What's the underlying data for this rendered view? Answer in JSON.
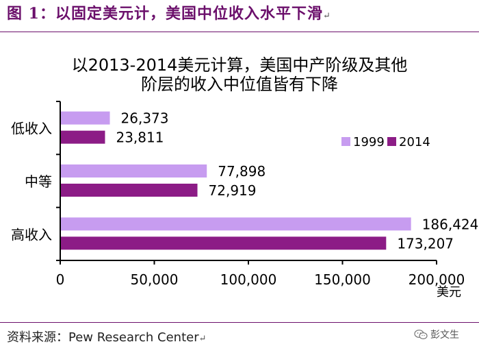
{
  "figure": {
    "label": "图 1：以固定美元计，美国中位收入水平下滑",
    "mark": "↵"
  },
  "source": {
    "prefix": "资料来源：",
    "name": "Pew Research Center",
    "mark": "↵"
  },
  "watermark": {
    "text": "彭文生",
    "icon": "wechat-icon"
  },
  "colors": {
    "title_accent": "#6b0f6b",
    "series_1999": "#c79cf0",
    "series_2014": "#8c1c86"
  },
  "chart_data": {
    "type": "bar",
    "orientation": "horizontal",
    "title": [
      "以2013-2014美元计算，美国中产阶级及其他",
      "阶层的收入中位值皆有下降"
    ],
    "categories": [
      "低收入",
      "中等",
      "高收入"
    ],
    "series": [
      {
        "name": "1999",
        "values": [
          26373,
          77898,
          186424
        ],
        "labels": [
          "26,373",
          "77,898",
          "186,424"
        ]
      },
      {
        "name": "2014",
        "values": [
          23811,
          72919,
          173207
        ],
        "labels": [
          "23,811",
          "72,919",
          "173,207"
        ]
      }
    ],
    "xlim": [
      0,
      200000
    ],
    "xticks": [
      0,
      50000,
      100000,
      150000,
      200000
    ],
    "xtick_labels": [
      "0",
      "50,000",
      "100,000",
      "150,000",
      "200,000"
    ],
    "xlabel": "美元",
    "ylabel": "",
    "legend_position": "upper-right",
    "grid": false
  }
}
